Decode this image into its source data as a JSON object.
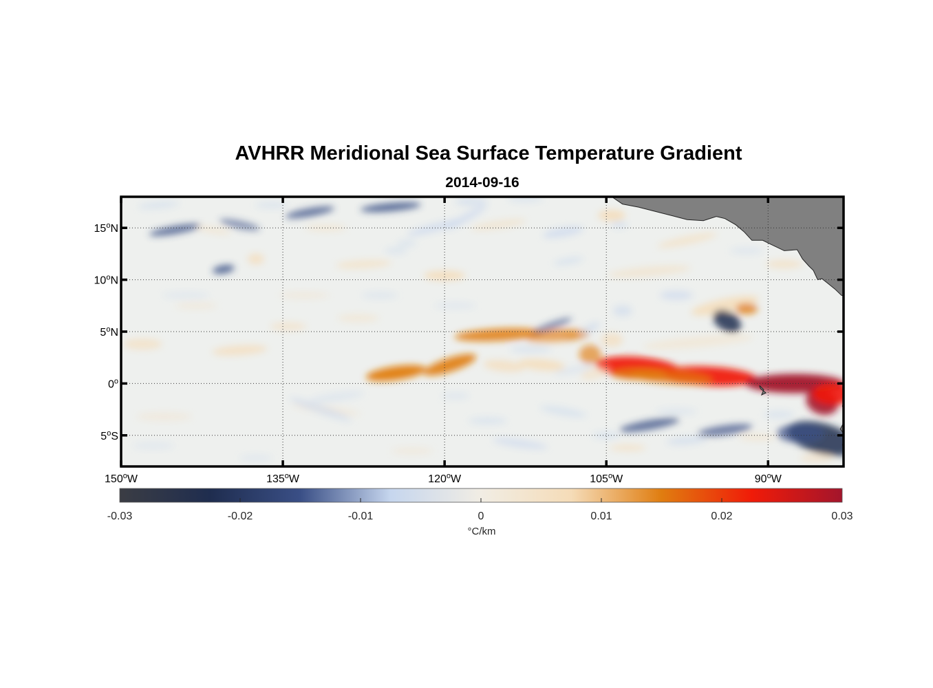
{
  "title": "AVHRR Meridional Sea Surface Temperature Gradient",
  "date": "2014-09-16",
  "map": {
    "lon_range": [
      -150,
      -83
    ],
    "lat_range": [
      -8,
      18
    ],
    "lon_ticks": [
      {
        "value": -150,
        "deg": "150",
        "hemi": "W"
      },
      {
        "value": -135,
        "deg": "135",
        "hemi": "W"
      },
      {
        "value": -120,
        "deg": "120",
        "hemi": "W"
      },
      {
        "value": -105,
        "deg": "105",
        "hemi": "W"
      },
      {
        "value": -90,
        "deg": "90",
        "hemi": "W"
      }
    ],
    "lat_ticks": [
      {
        "value": 15,
        "deg": "15",
        "hemi": "N"
      },
      {
        "value": 10,
        "deg": "10",
        "hemi": "N"
      },
      {
        "value": 5,
        "deg": "5",
        "hemi": "N"
      },
      {
        "value": 0,
        "deg": "0",
        "hemi": ""
      },
      {
        "value": -5,
        "deg": "5",
        "hemi": "S"
      }
    ],
    "grid": "dotted",
    "land_color": "#808080",
    "water_neutral_color": "#eef0ee"
  },
  "colorbar": {
    "range": [
      -0.03,
      0.03
    ],
    "ticks": [
      "-0.03",
      "-0.02",
      "-0.01",
      "0",
      "0.01",
      "0.02",
      "0.03"
    ],
    "unit": "°C/km",
    "stops": [
      "#3b3d44",
      "#1f2d4f",
      "#3a4f86",
      "#c6d6ee",
      "#f1ede4",
      "#f5dcb8",
      "#e07d10",
      "#f01b08",
      "#a3152c"
    ]
  }
}
